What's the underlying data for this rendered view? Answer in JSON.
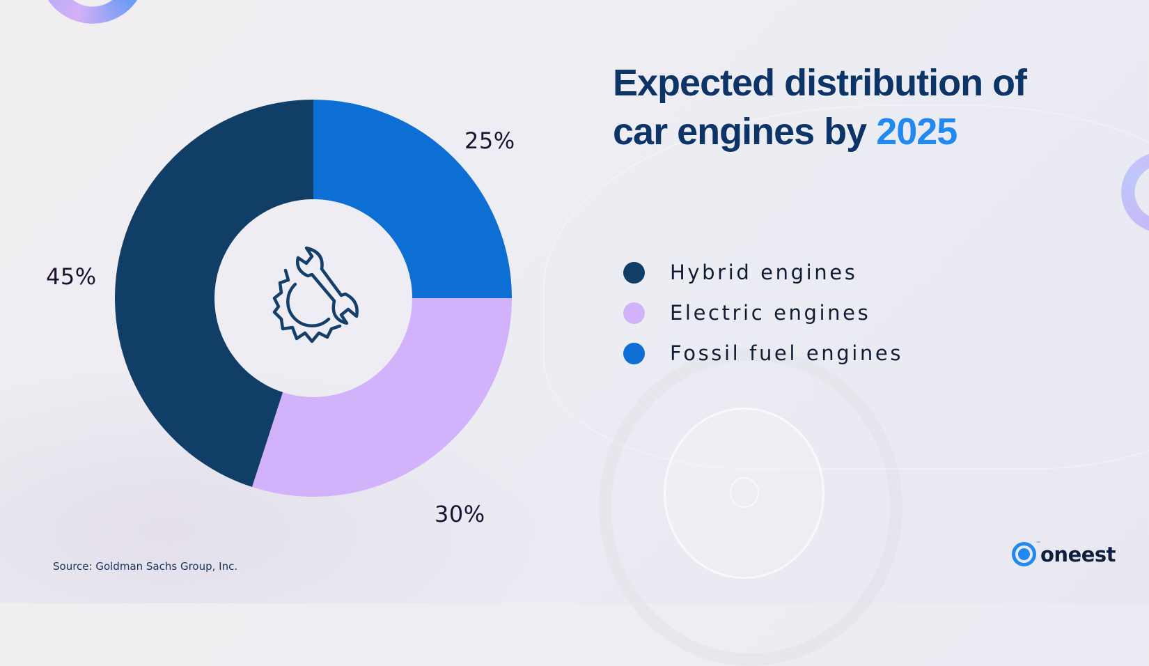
{
  "title": {
    "line1": "Expected distribution of",
    "line2_prefix": "car engines by",
    "highlight_year": "2025"
  },
  "legend": [
    {
      "label": "Hybrid engines",
      "color": "#113e66"
    },
    {
      "label": "Electric engines",
      "color": "#d2b2fa"
    },
    {
      "label": "Fossil fuel engines",
      "color": "#0d6fd3"
    }
  ],
  "center_icon": "gear-wrench-icon",
  "source": "Source: Goldman Sachs Group, Inc.",
  "brand": {
    "name": "oneest",
    "trademark": "™",
    "logo_icon": "ring-dot-logo-icon",
    "accent": "#2189f0"
  },
  "colors": {
    "title": "#0d3466",
    "accent": "#2189f0",
    "label_text": "#1a1230"
  },
  "chart_data": {
    "type": "pie",
    "variant": "donut",
    "title": "Expected distribution of car engines by 2025",
    "start_angle": "12 o'clock",
    "direction": "clockwise",
    "categories": [
      "Fossil fuel engines",
      "Electric engines",
      "Hybrid engines"
    ],
    "values": [
      25,
      30,
      45
    ],
    "unit": "%",
    "labels": [
      "25%",
      "30%",
      "45%"
    ],
    "colors": [
      "#0d6fd3",
      "#d2b2fa",
      "#113e66"
    ],
    "legend_position": "right"
  }
}
